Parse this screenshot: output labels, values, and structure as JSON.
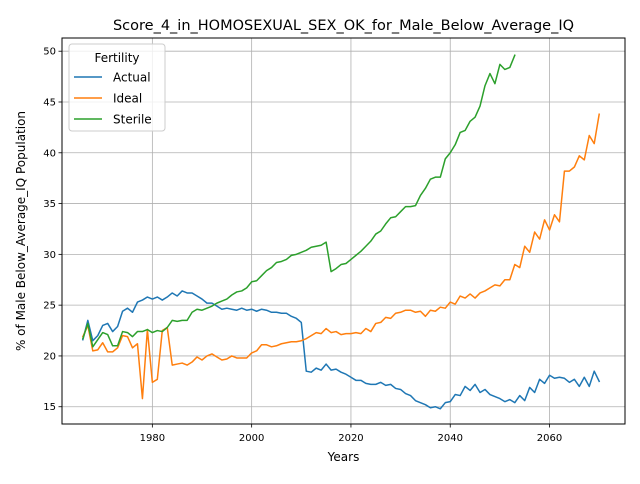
{
  "chart_data": {
    "type": "line",
    "title": "Score_4_in_HOMOSEXUAL_SEX_OK_for_Male_Below_Average_IQ",
    "xlabel": "Years",
    "ylabel": "% of Male Below_Average_IQ Population",
    "xlim": [
      1961.8,
      2075.2
    ],
    "ylim": [
      13.3,
      51.3
    ],
    "xticks": [
      1980,
      2000,
      2020,
      2040,
      2060
    ],
    "yticks": [
      15,
      20,
      25,
      30,
      35,
      40,
      45,
      50
    ],
    "grid": true,
    "legend": {
      "title": "Fertility",
      "position": "top-left"
    },
    "colors": {
      "Actual": "#1f77b4",
      "Ideal": "#ff7f0e",
      "Sterile": "#2ca02c"
    },
    "series": [
      {
        "name": "Actual",
        "x": [
          1966,
          1967,
          1968,
          1969,
          1970,
          1971,
          1972,
          1973,
          1974,
          1975,
          1976,
          1977,
          1978,
          1979,
          1980,
          1981,
          1982,
          1983,
          1984,
          1985,
          1986,
          1987,
          1988,
          1989,
          1990,
          1991,
          1992,
          1993,
          1994,
          1995,
          1996,
          1997,
          1998,
          1999,
          2000,
          2001,
          2002,
          2003,
          2004,
          2005,
          2006,
          2007,
          2008,
          2009,
          2010,
          2011,
          2012,
          2013,
          2014,
          2015,
          2016,
          2017,
          2018,
          2019,
          2020,
          2021,
          2022,
          2023,
          2024,
          2025,
          2026,
          2027,
          2028,
          2029,
          2030,
          2031,
          2032,
          2033,
          2034,
          2035,
          2036,
          2037,
          2038,
          2039,
          2040,
          2041,
          2042,
          2043,
          2044,
          2045,
          2046,
          2047,
          2048,
          2049,
          2050,
          2051,
          2052,
          2053,
          2054,
          2055,
          2056,
          2057,
          2058,
          2059,
          2060,
          2061,
          2062,
          2063,
          2064,
          2065,
          2066,
          2067,
          2068,
          2069,
          2070
        ],
        "values": [
          21.6,
          23.5,
          21.5,
          22.0,
          23.0,
          23.2,
          22.4,
          22.9,
          24.4,
          24.7,
          24.3,
          25.3,
          25.5,
          25.8,
          25.6,
          25.8,
          25.5,
          25.8,
          26.2,
          25.9,
          26.4,
          26.2,
          26.2,
          25.9,
          25.6,
          25.2,
          25.2,
          24.9,
          24.6,
          24.7,
          24.6,
          24.5,
          24.7,
          24.5,
          24.6,
          24.4,
          24.6,
          24.5,
          24.3,
          24.3,
          24.2,
          24.2,
          23.9,
          23.7,
          23.3,
          18.5,
          18.4,
          18.8,
          18.6,
          19.2,
          18.6,
          18.7,
          18.4,
          18.2,
          17.9,
          17.6,
          17.6,
          17.3,
          17.2,
          17.2,
          17.4,
          17.1,
          17.2,
          16.8,
          16.7,
          16.3,
          16.1,
          15.6,
          15.4,
          15.2,
          14.9,
          15.0,
          14.8,
          15.4,
          15.5,
          16.2,
          16.1,
          17.0,
          16.6,
          17.2,
          16.4,
          16.7,
          16.2,
          16.0,
          15.8,
          15.5,
          15.7,
          15.4,
          16.1,
          15.6,
          16.9,
          16.4,
          17.7,
          17.3,
          18.1,
          17.8,
          17.9,
          17.8,
          17.4,
          17.7,
          17.0,
          17.9,
          17.0,
          18.5,
          17.5
        ]
      },
      {
        "name": "Ideal",
        "x": [
          1966,
          1967,
          1968,
          1969,
          1970,
          1971,
          1972,
          1973,
          1974,
          1975,
          1976,
          1977,
          1978,
          1979,
          1980,
          1981,
          1982,
          1983,
          1984,
          1985,
          1986,
          1987,
          1988,
          1989,
          1990,
          1991,
          1992,
          1993,
          1994,
          1995,
          1996,
          1997,
          1998,
          1999,
          2000,
          2001,
          2002,
          2003,
          2004,
          2005,
          2006,
          2007,
          2008,
          2009,
          2010,
          2011,
          2012,
          2013,
          2014,
          2015,
          2016,
          2017,
          2018,
          2019,
          2020,
          2021,
          2022,
          2023,
          2024,
          2025,
          2026,
          2027,
          2028,
          2029,
          2030,
          2031,
          2032,
          2033,
          2034,
          2035,
          2036,
          2037,
          2038,
          2039,
          2040,
          2041,
          2042,
          2043,
          2044,
          2045,
          2046,
          2047,
          2048,
          2049,
          2050,
          2051,
          2052,
          2053,
          2054,
          2055,
          2056,
          2057,
          2058,
          2059,
          2060,
          2061,
          2062,
          2063,
          2064,
          2065,
          2066,
          2067,
          2068,
          2069,
          2070
        ],
        "values": [
          21.9,
          23.0,
          20.5,
          20.6,
          21.3,
          20.4,
          20.4,
          20.8,
          22.0,
          21.9,
          20.8,
          21.2,
          15.8,
          22.6,
          17.4,
          17.7,
          22.5,
          22.8,
          19.1,
          19.2,
          19.3,
          19.1,
          19.4,
          19.9,
          19.6,
          20.0,
          20.2,
          19.9,
          19.6,
          19.7,
          20.0,
          19.8,
          19.8,
          19.8,
          20.3,
          20.5,
          21.1,
          21.1,
          20.9,
          21.0,
          21.2,
          21.3,
          21.4,
          21.4,
          21.5,
          21.7,
          22.0,
          22.3,
          22.2,
          22.7,
          22.3,
          22.4,
          22.1,
          22.2,
          22.2,
          22.3,
          22.2,
          22.7,
          22.4,
          23.2,
          23.3,
          23.8,
          23.7,
          24.2,
          24.3,
          24.5,
          24.5,
          24.3,
          24.4,
          23.9,
          24.5,
          24.4,
          24.8,
          24.7,
          25.3,
          25.1,
          25.9,
          25.7,
          26.1,
          25.7,
          26.2,
          26.4,
          26.7,
          27.0,
          26.9,
          27.5,
          27.5,
          29.0,
          28.7,
          30.8,
          30.2,
          32.2,
          31.5,
          33.4,
          32.4,
          33.9,
          33.2,
          38.2,
          38.2,
          38.6,
          39.7,
          39.3,
          41.7,
          40.9,
          43.8
        ]
      },
      {
        "name": "Sterile",
        "x": [
          1966,
          1967,
          1968,
          1969,
          1970,
          1971,
          1972,
          1973,
          1974,
          1975,
          1976,
          1977,
          1978,
          1979,
          1980,
          1981,
          1982,
          1983,
          1984,
          1985,
          1986,
          1987,
          1988,
          1989,
          1990,
          1991,
          1992,
          1993,
          1994,
          1995,
          1996,
          1997,
          1998,
          1999,
          2000,
          2001,
          2002,
          2003,
          2004,
          2005,
          2006,
          2007,
          2008,
          2009,
          2010,
          2011,
          2012,
          2013,
          2014,
          2015,
          2016,
          2017,
          2018,
          2019,
          2020,
          2021,
          2022,
          2023,
          2024,
          2025,
          2026,
          2027,
          2028,
          2029,
          2030,
          2031,
          2032,
          2033,
          2034,
          2035,
          2036,
          2037,
          2038,
          2039,
          2040,
          2041,
          2042,
          2043,
          2044,
          2045,
          2046,
          2047,
          2048,
          2049,
          2050,
          2051,
          2052,
          2053
        ],
        "values": [
          21.7,
          23.2,
          20.9,
          21.6,
          22.3,
          22.1,
          21.0,
          21.0,
          22.4,
          22.3,
          21.9,
          22.4,
          22.4,
          22.6,
          22.3,
          22.5,
          22.4,
          22.8,
          23.5,
          23.4,
          23.5,
          23.5,
          24.3,
          24.6,
          24.5,
          24.7,
          24.9,
          25.2,
          25.4,
          25.6,
          26.0,
          26.3,
          26.4,
          26.7,
          27.3,
          27.4,
          27.9,
          28.4,
          28.7,
          29.2,
          29.3,
          29.5,
          29.9,
          30.0,
          30.2,
          30.4,
          30.7,
          30.8,
          30.9,
          31.2,
          28.3,
          28.6,
          29.0,
          29.1,
          29.5,
          29.9,
          30.3,
          30.8,
          31.3,
          32.0,
          32.3,
          33.0,
          33.6,
          33.7,
          34.2,
          34.7,
          34.7,
          34.8,
          35.8,
          36.5,
          37.4,
          37.6,
          37.6,
          39.4,
          40.0,
          40.8,
          42.0,
          42.2,
          43.1,
          43.5,
          44.6,
          46.6,
          47.8,
          46.8,
          48.7,
          48.2,
          48.4,
          49.6
        ]
      }
    ]
  }
}
